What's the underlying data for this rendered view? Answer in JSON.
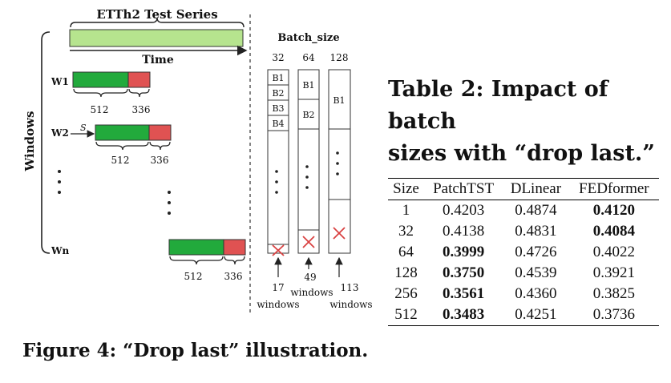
{
  "figure": {
    "series_title": "ETTh2 Test Series",
    "time_label": "Time",
    "windows_label": "Windows",
    "stride_label": "S",
    "windows": [
      {
        "name": "W1",
        "input": "512",
        "output": "336"
      },
      {
        "name": "W2",
        "input": "512",
        "output": "336"
      },
      {
        "name": "Wn",
        "input": "512",
        "output": "336"
      }
    ],
    "batch_size_label": "Batch_size",
    "batch_sizes": [
      "32",
      "64",
      "128"
    ],
    "batches": {
      "col32": [
        "B1",
        "B2",
        "B3",
        "B4"
      ],
      "col64": [
        "B1",
        "B2"
      ],
      "col128": [
        "B1"
      ]
    },
    "window_counts": [
      "17",
      "49",
      "113"
    ],
    "windows_word": "windows",
    "caption": "Figure 4: “Drop last” illustration.",
    "colors": {
      "green": "#22aa3c",
      "red": "#e05252",
      "series": "#b6e48e",
      "cross": "#d94040"
    }
  },
  "table": {
    "title_line1": "Table 2: Impact of batch",
    "title_line2": "sizes with “drop last.”",
    "headers": [
      "Size",
      "PatchTST",
      "DLinear",
      "FEDformer"
    ],
    "rows": [
      [
        "1",
        "0.4203",
        "0.4874",
        "0.4120"
      ],
      [
        "32",
        "0.4138",
        "0.4831",
        "0.4084"
      ],
      [
        "64",
        "0.3999",
        "0.4726",
        "0.4022"
      ],
      [
        "128",
        "0.3750",
        "0.4539",
        "0.3921"
      ],
      [
        "256",
        "0.3561",
        "0.4360",
        "0.3825"
      ],
      [
        "512",
        "0.3483",
        "0.4251",
        "0.3736"
      ]
    ],
    "bold": [
      [
        false,
        false,
        false,
        true
      ],
      [
        false,
        false,
        false,
        true
      ],
      [
        false,
        true,
        false,
        false
      ],
      [
        false,
        true,
        false,
        false
      ],
      [
        false,
        true,
        false,
        false
      ],
      [
        false,
        true,
        false,
        false
      ]
    ]
  }
}
